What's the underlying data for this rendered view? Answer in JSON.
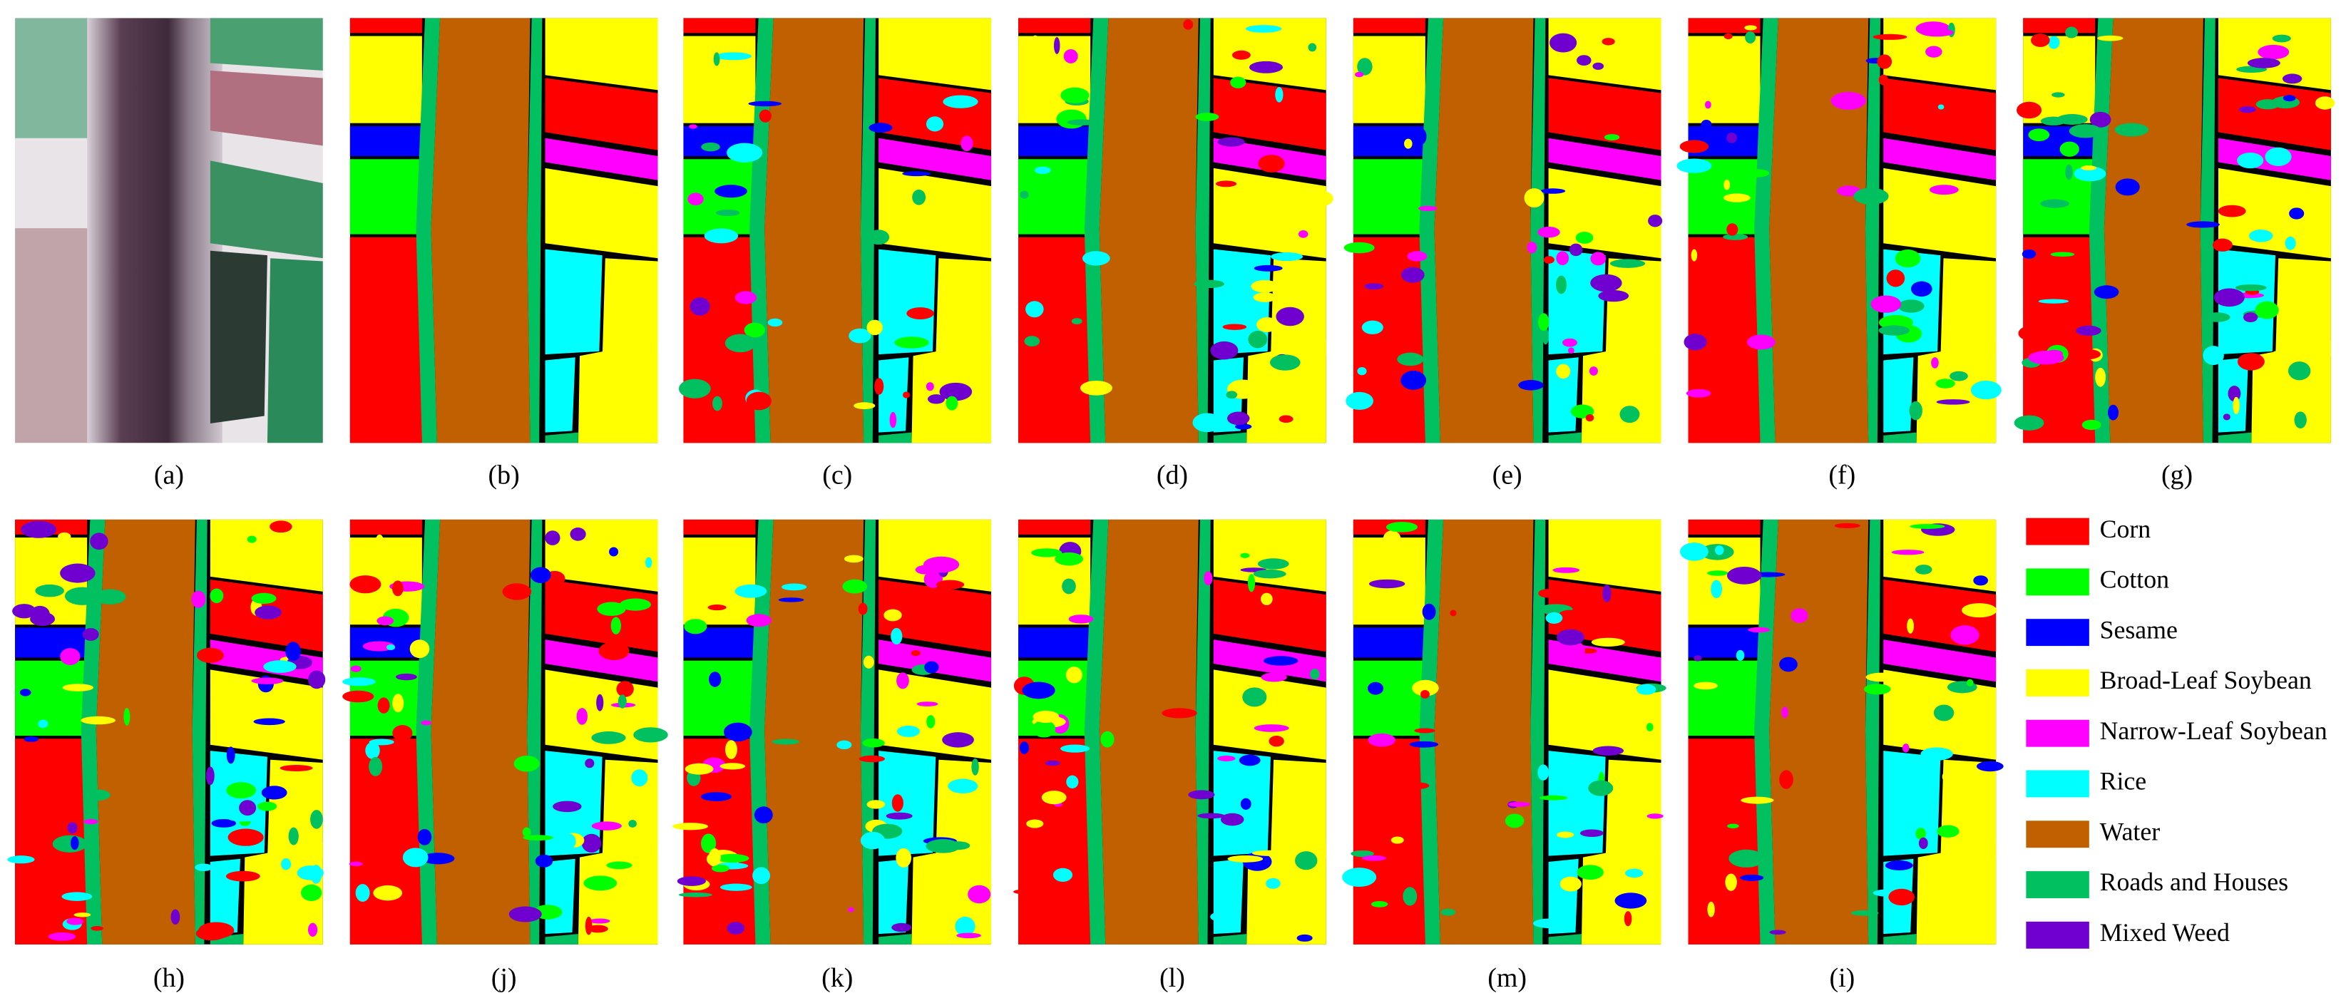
{
  "panels": [
    {
      "label": "(a)"
    },
    {
      "label": "(b)"
    },
    {
      "label": "(c)"
    },
    {
      "label": "(d)"
    },
    {
      "label": "(e)"
    },
    {
      "label": "(f)"
    },
    {
      "label": "(g)"
    },
    {
      "label": "(h)"
    },
    {
      "label": "(j)"
    },
    {
      "label": "(k)"
    },
    {
      "label": "(l)"
    },
    {
      "label": "(m)"
    },
    {
      "label": "(i)"
    }
  ],
  "legend": [
    {
      "name": "Corn",
      "color": "#ff0000"
    },
    {
      "name": "Cotton",
      "color": "#00ff00"
    },
    {
      "name": "Sesame",
      "color": "#0000ff"
    },
    {
      "name": "Broad-Leaf Soybean",
      "color": "#ffff00"
    },
    {
      "name": "Narrow-Leaf Soybean",
      "color": "#ff00ff"
    },
    {
      "name": "Rice",
      "color": "#00ffff"
    },
    {
      "name": "Water",
      "color": "#c06000"
    },
    {
      "name": "Roads and Houses",
      "color": "#00c060"
    },
    {
      "name": "Mixed Weed",
      "color": "#7000d0"
    }
  ]
}
